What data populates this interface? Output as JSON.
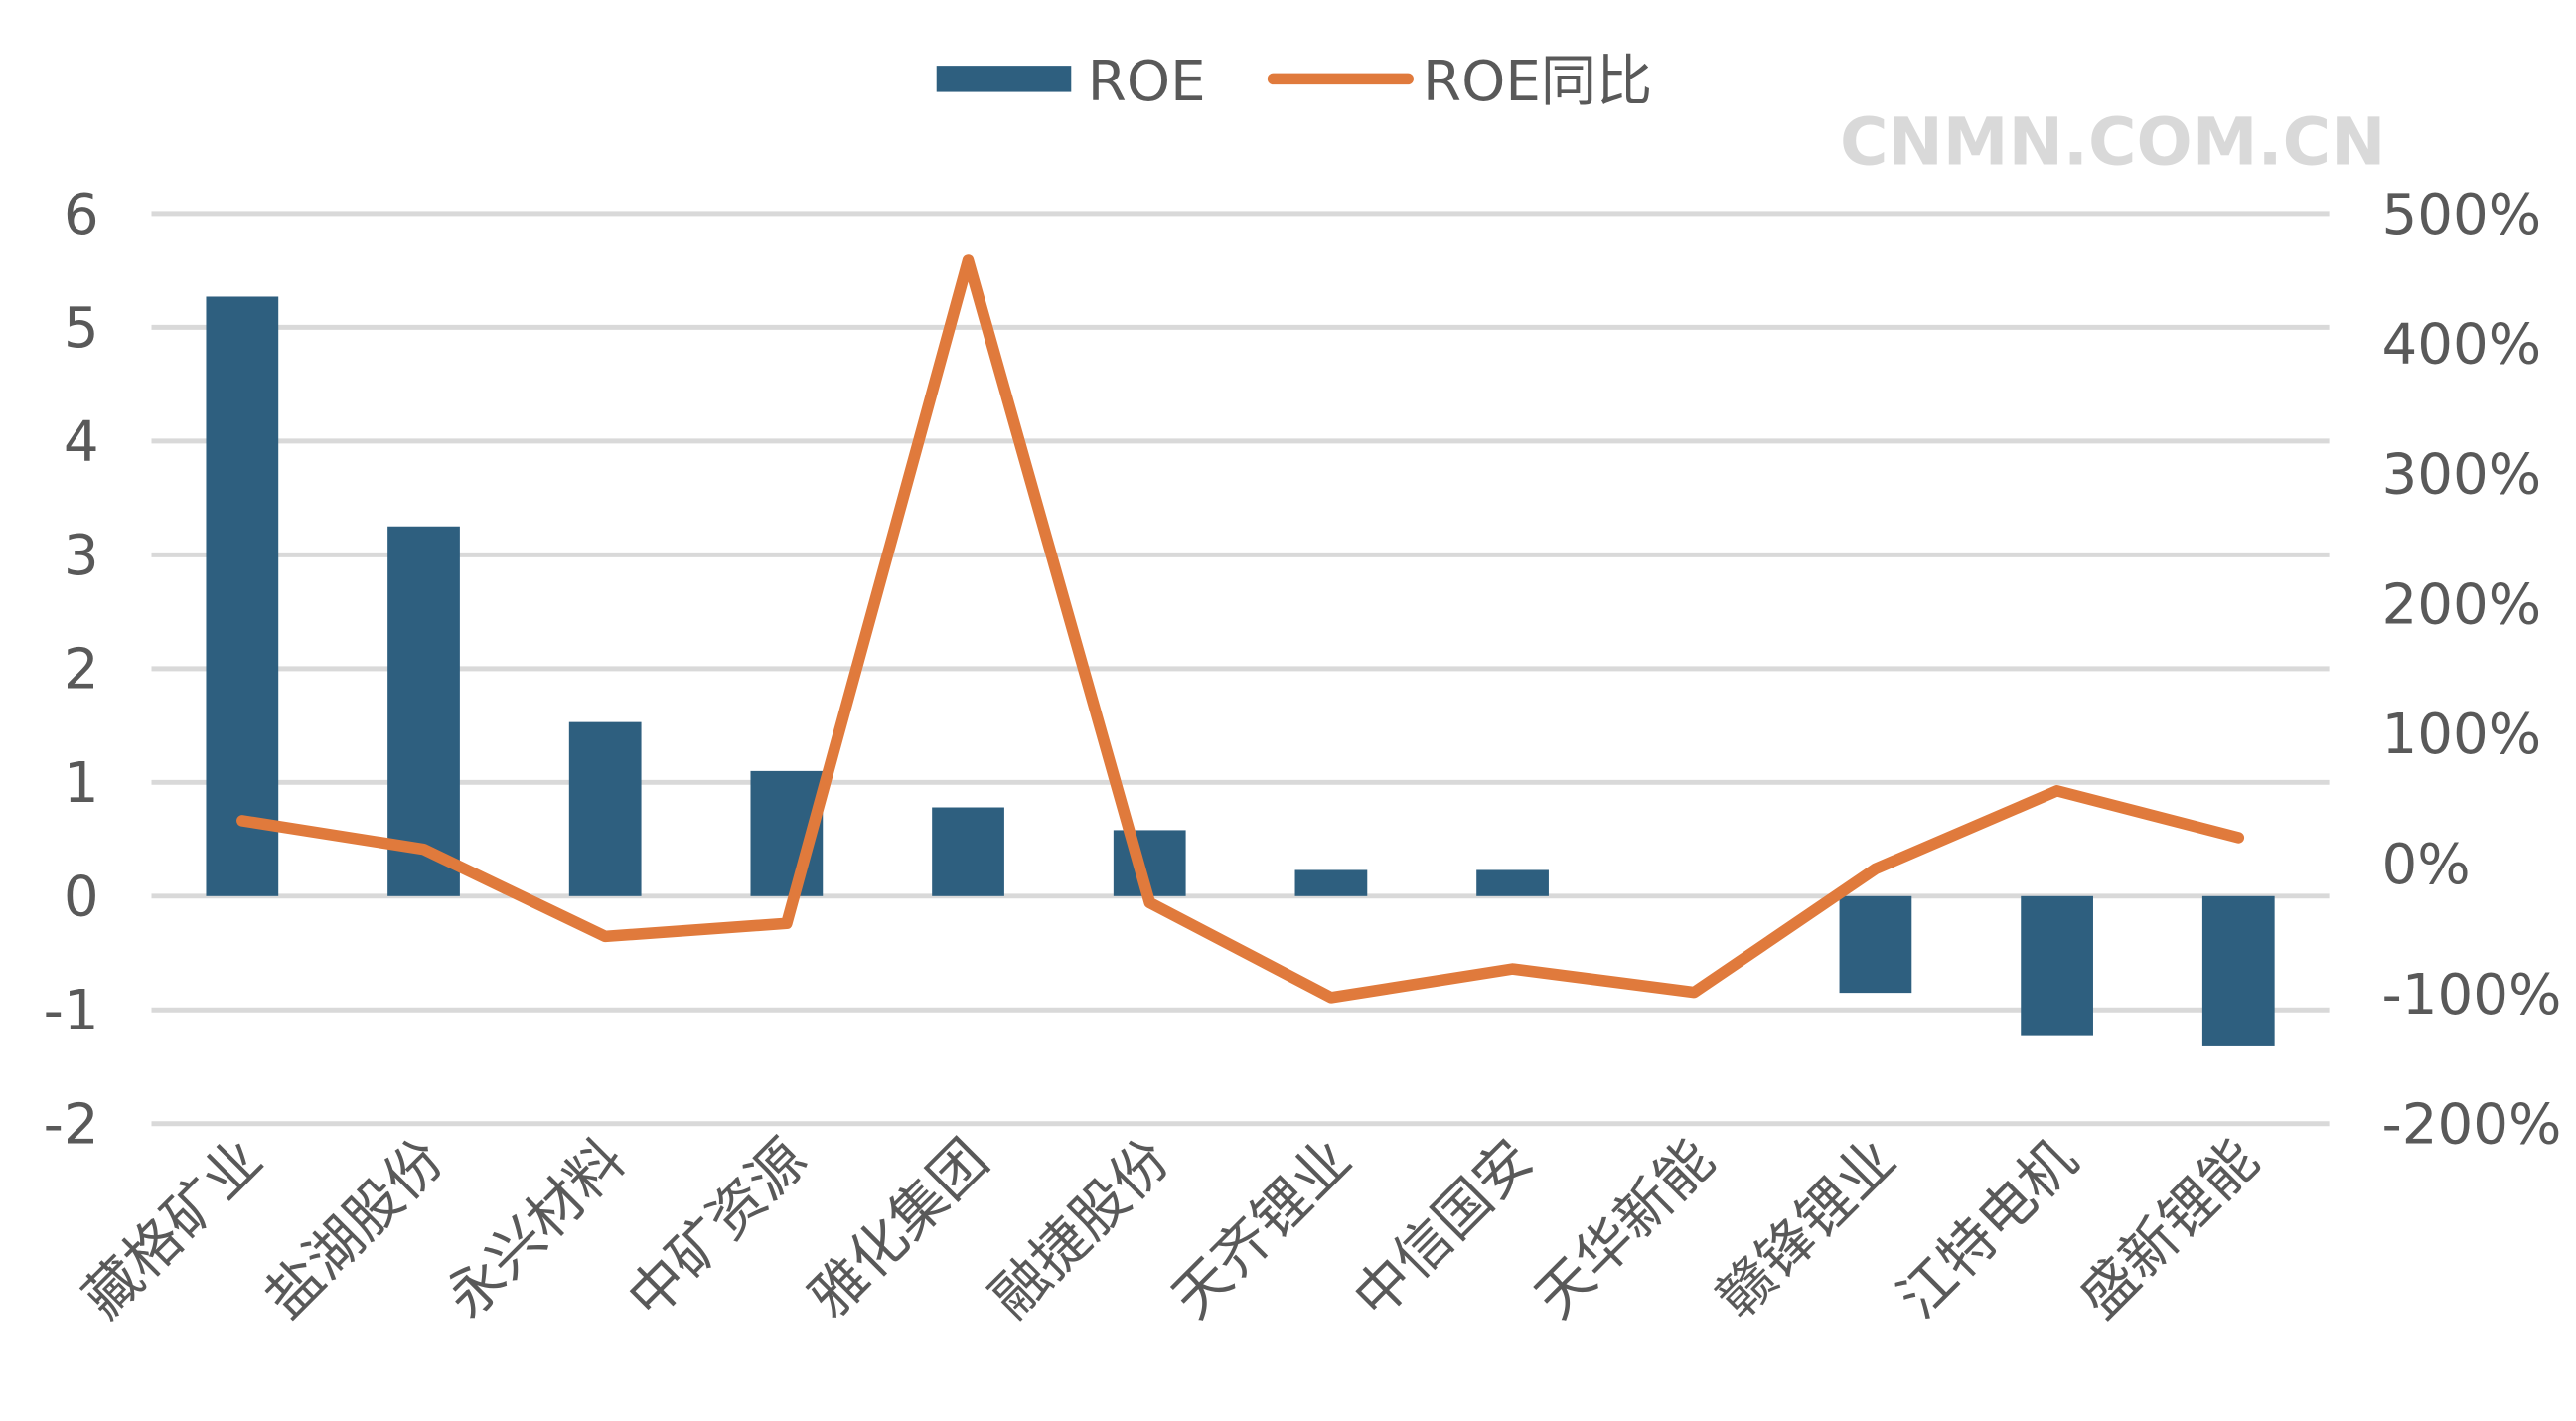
{
  "chart_data": {
    "type": "bar+line",
    "categories": [
      "藏格矿业",
      "盐湖股份",
      "永兴材料",
      "中矿资源",
      "雅化集团",
      "融捷股份",
      "天齐锂业",
      "中信国安",
      "天华新能",
      "赣锋锂业",
      "江特电机",
      "盛新锂能"
    ],
    "series": [
      {
        "name": "ROE",
        "type": "bar",
        "axis": "left",
        "color": "#2e5f7f",
        "values": [
          5.27,
          3.25,
          1.53,
          1.1,
          0.78,
          0.58,
          0.23,
          0.23,
          0,
          -0.85,
          -1.23,
          -1.32
        ]
      },
      {
        "name": "ROE同比",
        "type": "line",
        "axis": "right",
        "color": "#e07a3c",
        "values": [
          33,
          11,
          -56,
          -46,
          464,
          -30,
          -103,
          -81,
          -99,
          -4,
          56,
          20
        ]
      }
    ],
    "left_axis": {
      "ylim": [
        -2,
        6
      ],
      "ticks": [
        "6",
        "5",
        "4",
        "3",
        "2",
        "1",
        "0",
        "-1",
        "-2"
      ]
    },
    "right_axis": {
      "ylim": [
        -200,
        500
      ],
      "unit": "%",
      "ticks": [
        "500%",
        "400%",
        "300%",
        "200%",
        "100%",
        "0%",
        "-100%",
        "-200%"
      ]
    },
    "grid": true,
    "legend": "top",
    "watermark": "CNMN.COM.CN"
  }
}
